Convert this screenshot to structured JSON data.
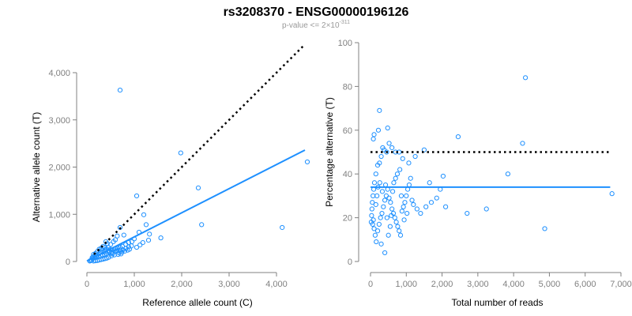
{
  "header": {
    "title": "rs3208370 - ENSG00000196126",
    "subtitle_prefix": "p-value <= 2×10",
    "subtitle_exponent": "-311"
  },
  "colors": {
    "points": "#1e90ff",
    "fit_line": "#1e90ff",
    "reference_line": "#000000",
    "axis": "#808080",
    "tick_text": "#808080"
  },
  "chart_data": [
    {
      "type": "scatter",
      "title": "",
      "xlabel": "Reference allele count (C)",
      "ylabel": "Alternative allele count (T)",
      "xlim": [
        0,
        4600
      ],
      "ylim": [
        0,
        4000
      ],
      "x_ticks": [
        0,
        1000,
        2000,
        3000,
        4000
      ],
      "x_tick_labels": [
        "0",
        "1,000",
        "2,000",
        "3,000",
        "4,000"
      ],
      "y_ticks": [
        0,
        1000,
        2000,
        3000,
        4000
      ],
      "y_tick_labels": [
        "0",
        "1,000",
        "2,000",
        "3,000",
        "4,000"
      ],
      "grid": false,
      "reference_line": {
        "style": "dotted",
        "from": [
          150,
          150
        ],
        "to": [
          4600,
          4600
        ]
      },
      "fit_line": {
        "style": "solid",
        "from": [
          0,
          10
        ],
        "to": [
          4600,
          2360
        ]
      },
      "points": [
        [
          700,
          3630
        ],
        [
          1980,
          2300
        ],
        [
          2350,
          1560
        ],
        [
          4650,
          2110
        ],
        [
          1050,
          1390
        ],
        [
          4120,
          720
        ],
        [
          2420,
          780
        ],
        [
          1250,
          780
        ],
        [
          1560,
          500
        ],
        [
          1200,
          990
        ],
        [
          700,
          720
        ],
        [
          1100,
          620
        ],
        [
          1320,
          580
        ],
        [
          1000,
          480
        ],
        [
          950,
          420
        ],
        [
          780,
          560
        ],
        [
          640,
          540
        ],
        [
          600,
          460
        ],
        [
          560,
          420
        ],
        [
          500,
          360
        ],
        [
          430,
          380
        ],
        [
          380,
          300
        ],
        [
          320,
          240
        ],
        [
          280,
          200
        ],
        [
          250,
          160
        ],
        [
          200,
          120
        ],
        [
          160,
          90
        ],
        [
          120,
          60
        ],
        [
          100,
          30
        ],
        [
          80,
          20
        ],
        [
          60,
          10
        ],
        [
          140,
          150
        ],
        [
          180,
          170
        ],
        [
          220,
          210
        ],
        [
          260,
          260
        ],
        [
          300,
          280
        ],
        [
          340,
          320
        ],
        [
          400,
          420
        ],
        [
          450,
          300
        ],
        [
          500,
          260
        ],
        [
          550,
          250
        ],
        [
          600,
          270
        ],
        [
          650,
          280
        ],
        [
          700,
          300
        ],
        [
          750,
          320
        ],
        [
          820,
          360
        ],
        [
          880,
          400
        ],
        [
          620,
          220
        ],
        [
          680,
          180
        ],
        [
          740,
          200
        ],
        [
          800,
          220
        ],
        [
          860,
          240
        ],
        [
          900,
          260
        ],
        [
          520,
          120
        ],
        [
          460,
          90
        ],
        [
          420,
          70
        ],
        [
          380,
          60
        ],
        [
          340,
          50
        ],
        [
          300,
          40
        ],
        [
          260,
          30
        ],
        [
          220,
          20
        ],
        [
          180,
          15
        ],
        [
          140,
          10
        ],
        [
          110,
          80
        ],
        [
          130,
          100
        ],
        [
          170,
          80
        ],
        [
          210,
          90
        ],
        [
          250,
          110
        ],
        [
          290,
          120
        ],
        [
          330,
          140
        ],
        [
          370,
          150
        ],
        [
          410,
          170
        ],
        [
          470,
          190
        ],
        [
          530,
          200
        ],
        [
          590,
          210
        ],
        [
          640,
          230
        ],
        [
          700,
          240
        ],
        [
          760,
          250
        ],
        [
          820,
          280
        ],
        [
          880,
          310
        ],
        [
          940,
          330
        ],
        [
          360,
          200
        ],
        [
          390,
          240
        ],
        [
          420,
          260
        ],
        [
          450,
          230
        ],
        [
          480,
          210
        ],
        [
          510,
          180
        ],
        [
          540,
          160
        ],
        [
          580,
          140
        ],
        [
          660,
          150
        ],
        [
          720,
          160
        ],
        [
          1050,
          300
        ],
        [
          1120,
          350
        ],
        [
          1180,
          400
        ],
        [
          1300,
          450
        ]
      ]
    },
    {
      "type": "scatter",
      "title": "",
      "xlabel": "Total number of reads",
      "ylabel": "Percentage alternative (T)",
      "xlim": [
        0,
        7000
      ],
      "ylim": [
        0,
        100
      ],
      "x_ticks": [
        0,
        1000,
        2000,
        3000,
        4000,
        5000,
        6000,
        7000
      ],
      "x_tick_labels": [
        "0",
        "1,000",
        "2,000",
        "3,000",
        "4,000",
        "5,000",
        "6,000",
        "7,000"
      ],
      "y_ticks": [
        0,
        20,
        40,
        60,
        80,
        100
      ],
      "y_tick_labels": [
        "0",
        "20",
        "40",
        "60",
        "80",
        "100"
      ],
      "grid": false,
      "reference_line": {
        "style": "dotted",
        "from": [
          0,
          50
        ],
        "to": [
          6700,
          50
        ]
      },
      "fit_line": {
        "style": "solid",
        "from": [
          0,
          34
        ],
        "to": [
          6700,
          34
        ]
      },
      "points": [
        [
          4330,
          84
        ],
        [
          250,
          69
        ],
        [
          480,
          61
        ],
        [
          100,
          58
        ],
        [
          80,
          56
        ],
        [
          220,
          60
        ],
        [
          340,
          52
        ],
        [
          2450,
          57
        ],
        [
          4250,
          54
        ],
        [
          6750,
          31
        ],
        [
          4870,
          15
        ],
        [
          3840,
          40
        ],
        [
          3240,
          24
        ],
        [
          2700,
          22
        ],
        [
          2030,
          39
        ],
        [
          1650,
          36
        ],
        [
          1500,
          51
        ],
        [
          1250,
          48
        ],
        [
          1070,
          45
        ],
        [
          900,
          47
        ],
        [
          800,
          50
        ],
        [
          700,
          50
        ],
        [
          600,
          52
        ],
        [
          520,
          54
        ],
        [
          450,
          50
        ],
        [
          380,
          51
        ],
        [
          300,
          48
        ],
        [
          250,
          45
        ],
        [
          200,
          44
        ],
        [
          150,
          40
        ],
        [
          110,
          36
        ],
        [
          90,
          33
        ],
        [
          70,
          30
        ],
        [
          50,
          27
        ],
        [
          40,
          24
        ],
        [
          30,
          21
        ],
        [
          20,
          18
        ],
        [
          60,
          17
        ],
        [
          80,
          19
        ],
        [
          100,
          15
        ],
        [
          130,
          12
        ],
        [
          160,
          9
        ],
        [
          200,
          14
        ],
        [
          240,
          17
        ],
        [
          280,
          20
        ],
        [
          320,
          22
        ],
        [
          360,
          25
        ],
        [
          400,
          28
        ],
        [
          440,
          30
        ],
        [
          480,
          33
        ],
        [
          520,
          29
        ],
        [
          560,
          27
        ],
        [
          600,
          24
        ],
        [
          640,
          22
        ],
        [
          680,
          20
        ],
        [
          720,
          18
        ],
        [
          760,
          16
        ],
        [
          800,
          14
        ],
        [
          840,
          12
        ],
        [
          880,
          23
        ],
        [
          920,
          25
        ],
        [
          960,
          27
        ],
        [
          1000,
          30
        ],
        [
          1040,
          33
        ],
        [
          1080,
          35
        ],
        [
          1120,
          38
        ],
        [
          1160,
          28
        ],
        [
          1200,
          26
        ],
        [
          1300,
          24
        ],
        [
          1400,
          22
        ],
        [
          1550,
          25
        ],
        [
          1700,
          27
        ],
        [
          1850,
          29
        ],
        [
          1950,
          33
        ],
        [
          2100,
          25
        ],
        [
          400,
          4
        ],
        [
          300,
          8
        ],
        [
          500,
          12
        ],
        [
          550,
          16
        ],
        [
          650,
          36
        ],
        [
          700,
          38
        ],
        [
          750,
          40
        ],
        [
          820,
          42
        ],
        [
          150,
          26
        ],
        [
          180,
          30
        ],
        [
          210,
          34
        ],
        [
          260,
          36
        ],
        [
          330,
          32
        ],
        [
          420,
          35
        ],
        [
          460,
          20
        ],
        [
          580,
          21
        ],
        [
          620,
          32
        ],
        [
          860,
          30
        ],
        [
          940,
          19
        ],
        [
          1020,
          22
        ]
      ]
    }
  ]
}
